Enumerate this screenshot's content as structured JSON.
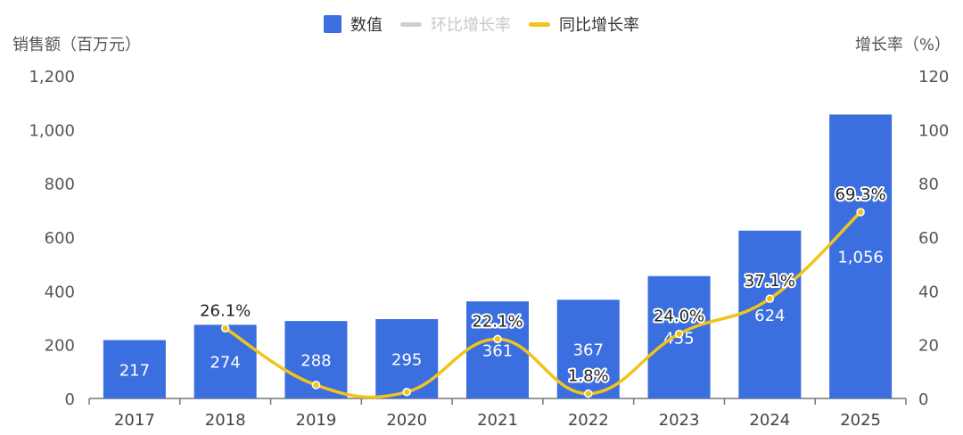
{
  "legend": [
    {
      "label": "数值",
      "kind": "box",
      "color": "#3b6fe0",
      "enabled": true
    },
    {
      "label": "环比增长率",
      "kind": "line",
      "color": "#cfcfcf",
      "enabled": false
    },
    {
      "label": "同比增长率",
      "kind": "line",
      "color": "#f2c31a",
      "enabled": true
    }
  ],
  "chart_data": {
    "type": "bar",
    "categories": [
      "2017",
      "2018",
      "2019",
      "2020",
      "2021",
      "2022",
      "2023",
      "2024",
      "2025"
    ],
    "series": [
      {
        "name": "数值",
        "type": "bar",
        "axis": "left",
        "color": "#3b6fe0",
        "values": [
          217,
          274,
          288,
          295,
          361,
          367,
          455,
          624,
          1056
        ],
        "labels": [
          "217",
          "274",
          "288",
          "295",
          "361",
          "367",
          "455",
          "624",
          "1,056"
        ]
      },
      {
        "name": "同比增长率",
        "type": "line",
        "smooth": true,
        "axis": "right",
        "color": "#f2c31a",
        "values": [
          null,
          26.1,
          5,
          2.4,
          22.1,
          1.8,
          24.0,
          37.1,
          69.3
        ],
        "labels": [
          null,
          "26.1%",
          null,
          null,
          "22.1%",
          "1.8%",
          "24.0%",
          "37.1%",
          "69.3%"
        ]
      }
    ],
    "ylabel": "销售额（百万元）",
    "y2label": "增长率（%）",
    "ylim": [
      0,
      1200
    ],
    "yticks": [
      "0",
      "200",
      "400",
      "600",
      "800",
      "1,000",
      "1,200"
    ],
    "y2lim": [
      0,
      120
    ],
    "y2ticks": [
      "0",
      "20",
      "40",
      "60",
      "80",
      "100",
      "120"
    ],
    "grid": false,
    "legend_position": "top"
  }
}
